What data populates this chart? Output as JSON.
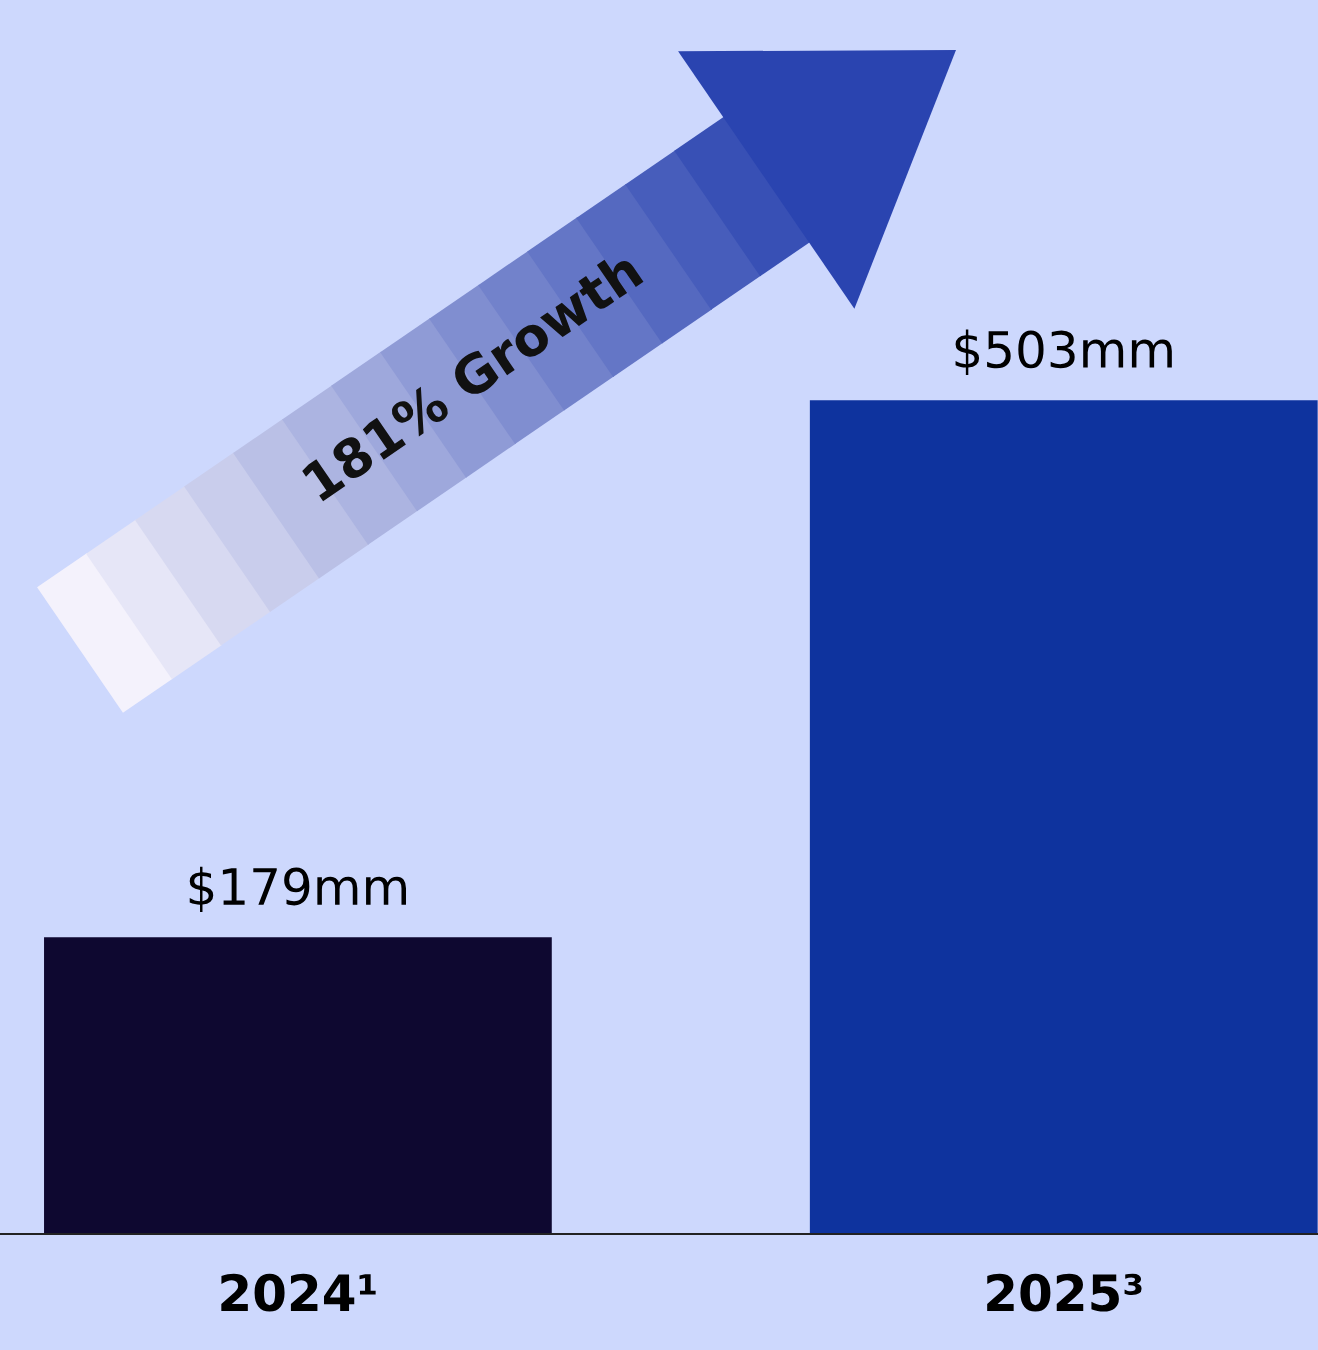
{
  "chart_data": {
    "type": "bar",
    "categories": [
      "2024¹",
      "2025³"
    ],
    "values": [
      179,
      503
    ],
    "colors": [
      "#0e0830",
      "#0e339e"
    ],
    "value_labels": [
      "$179mm",
      "$503mm"
    ],
    "annotations": [
      "181% Growth"
    ],
    "grid": false,
    "legend": false
  }
}
